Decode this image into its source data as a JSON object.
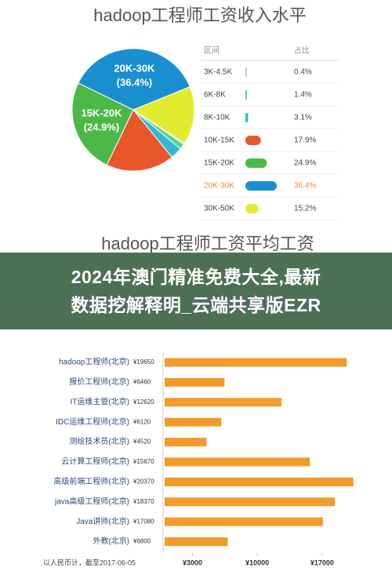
{
  "chart_data": [
    {
      "type": "pie",
      "title": "hadoop工程师工资收入水平",
      "table_headers": [
        "区间",
        "占比"
      ],
      "categories": [
        "3K-4.5K",
        "6K-8K",
        "8K-10K",
        "10K-15K",
        "15K-20K",
        "20K-30K",
        "30K-50K"
      ],
      "values": [
        0.4,
        1.4,
        3.1,
        17.9,
        24.9,
        36.4,
        15.2
      ],
      "value_labels": [
        "0.4%",
        "1.4%",
        "3.1%",
        "17.9%",
        "24.9%",
        "36.4%",
        "15.2%"
      ],
      "slice_labels": [
        null,
        null,
        null,
        null,
        "(24.9%)",
        "(36.4%)",
        null
      ],
      "colors": [
        "#b8c8d8",
        "#5fd08a",
        "#33b8d8",
        "#e8562a",
        "#4cb848",
        "#1a8fd0",
        "#e2ec2e"
      ],
      "highlighted_row": 5,
      "highlight_color": "#f08a3c"
    },
    {
      "type": "hbar",
      "title": "hadoop工程师工资平均工资",
      "categories": [
        "hadoop工程师(北京)",
        "报价工程师(北京)",
        "IT运维主管(北京)",
        "IDC运维工程师(北京)",
        "测绘技术员(北京)",
        "云计算工程师(北京)",
        "高级前端工程师(北京)",
        "java高级工程师(北京)",
        "Java讲师(北京)",
        "外教(北京)"
      ],
      "values": [
        19650,
        6460,
        12620,
        6120,
        4520,
        15670,
        20370,
        18370,
        17080,
        6800
      ],
      "value_labels": [
        "¥19650",
        "¥6460",
        "¥12620",
        "¥6120",
        "¥4520",
        "¥15670",
        "¥20370",
        "¥18370",
        "¥17080",
        "¥6800"
      ],
      "color": "#f39a2b",
      "xlim": [
        0,
        22000
      ],
      "xticks": [
        {
          "value": 3000,
          "label": "¥3000"
        },
        {
          "value": 10000,
          "label": "¥10000"
        },
        {
          "value": 17000,
          "label": "¥17000"
        }
      ],
      "note": "以人民币计，截至2017-06-05"
    }
  ],
  "banner": {
    "lines": [
      "2024年澳门精准免费大全,最新",
      "数据挖解释明_云端共享版EZR"
    ]
  }
}
